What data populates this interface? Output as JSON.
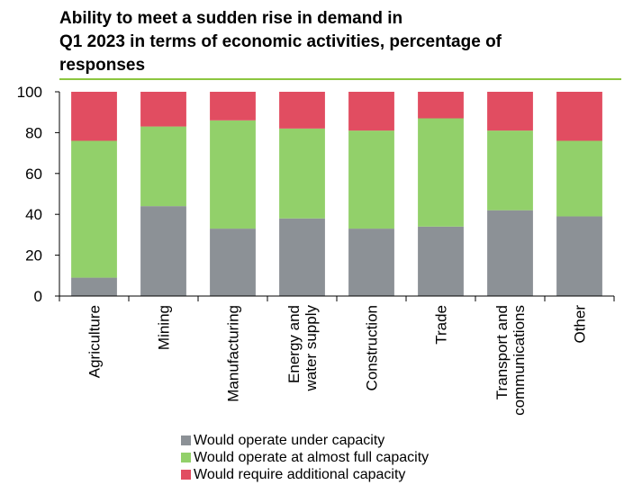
{
  "title_line1": "Ability to meet a sudden rise in demand in",
  "title_line2": "Q1 2023 in terms of economic activities, percentage of",
  "title_line3": "responses",
  "chart_data": {
    "type": "bar",
    "stacked": true,
    "categories": [
      "Agriculture",
      "Mining",
      "Manufacturing",
      "Energy and water supply",
      "Construction",
      "Trade",
      "Transport and communications",
      "Other"
    ],
    "category_label_lines": [
      [
        "Agriculture"
      ],
      [
        "Mining"
      ],
      [
        "Manufacturing"
      ],
      [
        "Energy and",
        "water supply"
      ],
      [
        "Construction"
      ],
      [
        "Trade"
      ],
      [
        "Transport and",
        "communications"
      ],
      [
        "Other"
      ]
    ],
    "series": [
      {
        "name": "Would operate under capacity",
        "color": "#8c9196",
        "values": [
          9,
          44,
          33,
          38,
          33,
          34,
          42,
          39
        ]
      },
      {
        "name": "Would operate at almost full capacity",
        "color": "#92d06a",
        "values": [
          67,
          39,
          53,
          44,
          48,
          53,
          39,
          37
        ]
      },
      {
        "name": "Would require additional capacity",
        "color": "#e14d61",
        "values": [
          24,
          17,
          14,
          18,
          19,
          13,
          19,
          24
        ]
      }
    ],
    "ylim": [
      0,
      100
    ],
    "yticks": [
      0,
      20,
      40,
      60,
      80,
      100
    ],
    "grid": false,
    "legend_position": "bottom"
  }
}
